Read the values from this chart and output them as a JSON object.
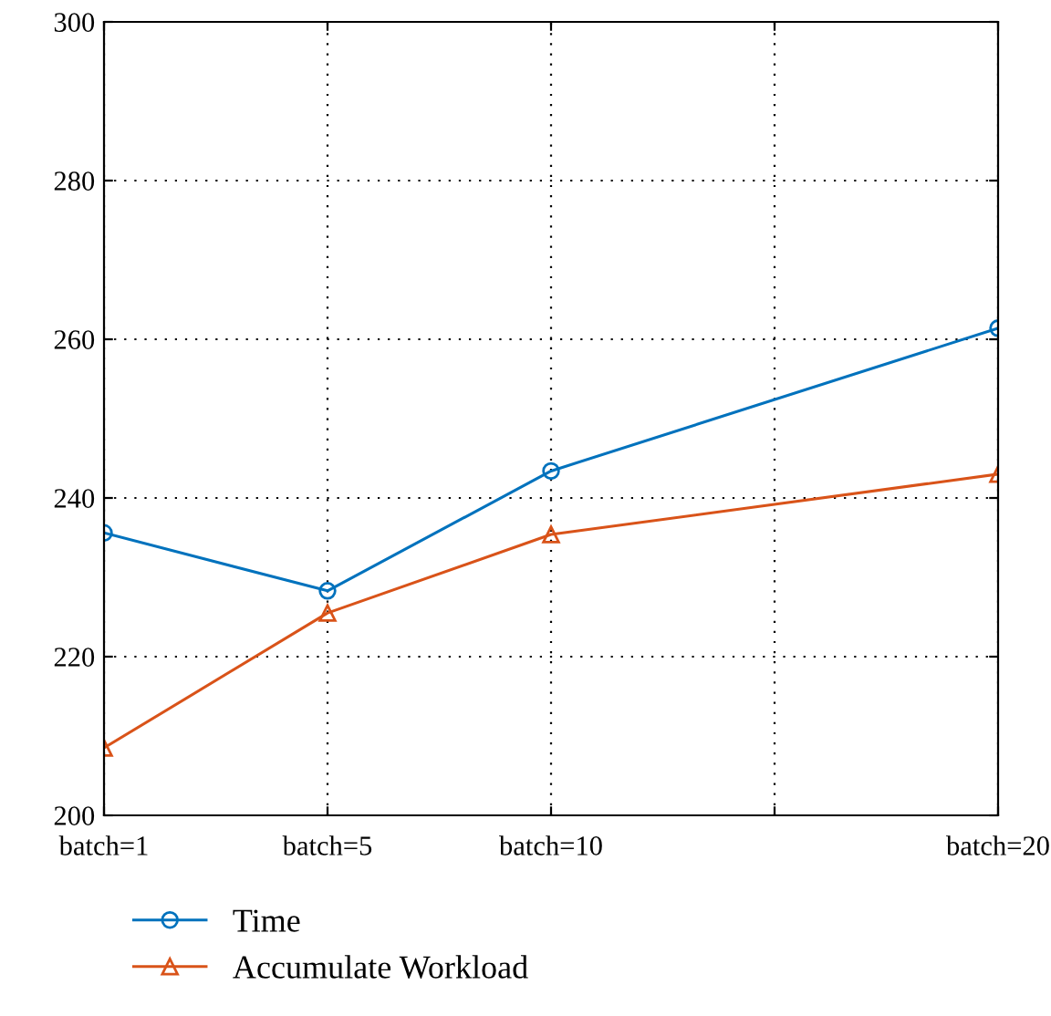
{
  "chart_data": {
    "type": "line",
    "categories": [
      "batch=1",
      "batch=5",
      "batch=10",
      null,
      "batch=20"
    ],
    "series": [
      {
        "name": "Time",
        "color": "#0072bd",
        "marker": "circle",
        "values": [
          235.6,
          228.3,
          243.4,
          null,
          261.4
        ]
      },
      {
        "name": "Accumulate Workload",
        "color": "#d95319",
        "marker": "triangle",
        "values": [
          208.5,
          225.5,
          235.4,
          null,
          243.0
        ]
      }
    ],
    "ylim": [
      200,
      300
    ],
    "yticks": [
      200,
      220,
      240,
      260,
      280,
      300
    ],
    "grid": true,
    "legend": "bottom left",
    "line_style": "solid"
  }
}
